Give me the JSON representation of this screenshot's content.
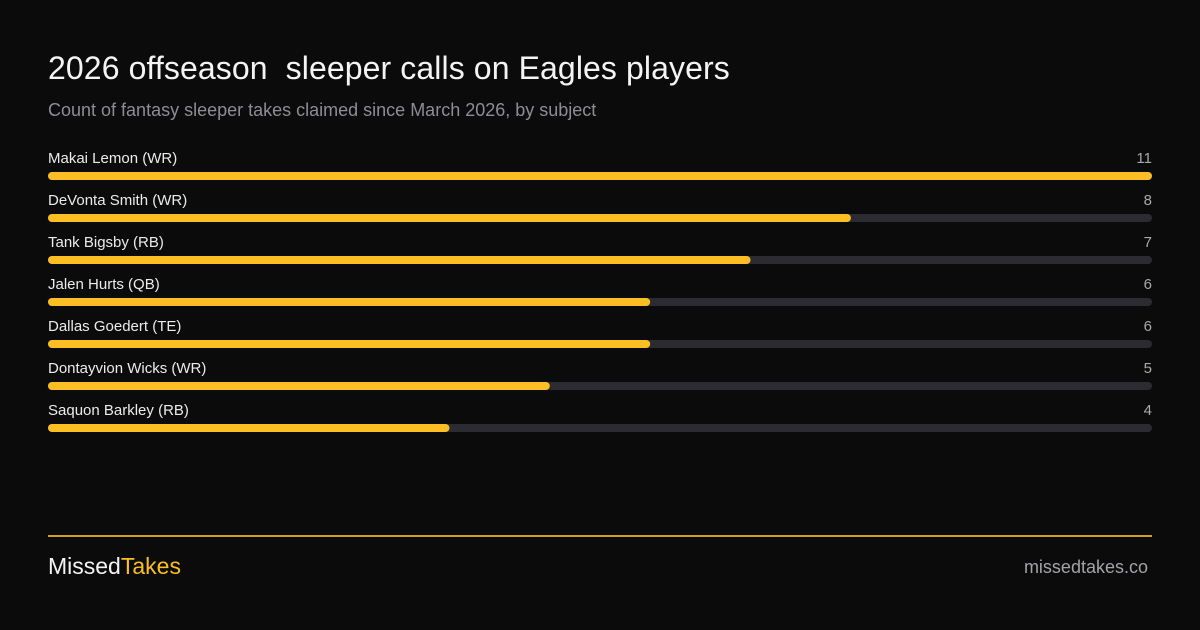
{
  "header": {
    "title": "2026 offseason  sleeper calls on Eagles players",
    "subtitle": "Count of fantasy sleeper takes claimed since March 2026, by subject"
  },
  "colors": {
    "background": "#0b0b0b",
    "bar_fill": "#fbbf24",
    "track": "#2c2b31",
    "accent": "#fbbf24"
  },
  "chart_data": {
    "type": "bar",
    "orientation": "horizontal",
    "categories": [
      "Makai Lemon (WR)",
      "DeVonta Smith (WR)",
      "Tank Bigsby (RB)",
      "Jalen Hurts (QB)",
      "Dallas Goedert (TE)",
      "Dontayvion Wicks (WR)",
      "Saquon Barkley (RB)"
    ],
    "values": [
      11,
      8,
      7,
      6,
      6,
      5,
      4
    ],
    "xlim": [
      0,
      11
    ],
    "grid": false,
    "legend": "none"
  },
  "footer": {
    "brand_part1": "Missed",
    "brand_part2": "Takes",
    "site": "missedtakes.co"
  }
}
